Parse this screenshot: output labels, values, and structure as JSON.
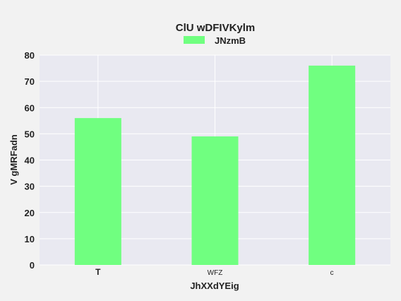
{
  "chart_data": {
    "type": "bar",
    "title": "ClU wDFIVKylm",
    "xlabel": "JhXXdYEig",
    "ylabel": "V gMRFadn",
    "categories": [
      "T",
      "WFZ",
      "c"
    ],
    "series": [
      {
        "name": "JNzmB",
        "values": [
          56,
          49,
          76
        ],
        "color": "#70ff80"
      }
    ],
    "ylim": [
      0,
      80
    ],
    "yticks": [
      0,
      10,
      20,
      30,
      40,
      50,
      60,
      70,
      80
    ],
    "grid": true,
    "legend_position": "top-center"
  },
  "colors": {
    "background": "#f2f2f2",
    "plot_background": "#e9e9f1",
    "grid": "#ffffff"
  }
}
